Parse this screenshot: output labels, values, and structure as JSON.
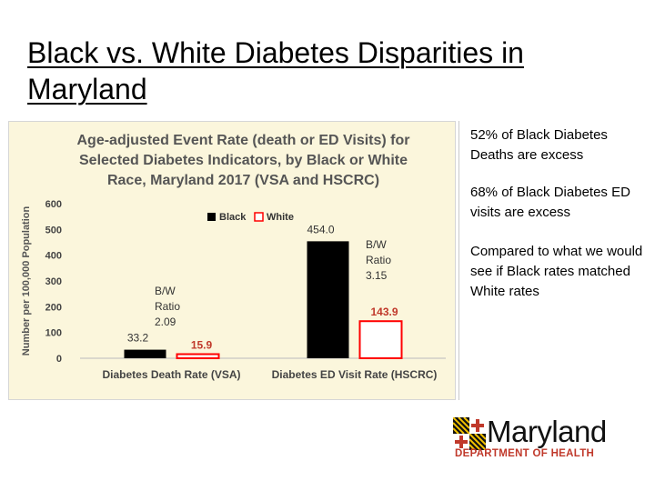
{
  "slide": {
    "title": "Black vs. White Diabetes Disparities in Maryland",
    "notes": [
      "52% of Black Diabetes Deaths are excess",
      "68% of Black Diabetes ED visits are excess",
      "Compared to what we would see if Black rates matched White rates"
    ]
  },
  "logo": {
    "wordmark": "Maryland",
    "department": "DEPARTMENT OF HEALTH"
  },
  "chart_data": {
    "type": "bar",
    "title": "Age-adjusted Event Rate (death or ED Visits) for Selected Diabetes Indicators, by Black or White Race, Maryland 2017 (VSA and HSCRC)",
    "xlabel": "",
    "ylabel": "Number per 100,000 Population",
    "ylim": [
      0,
      600
    ],
    "yticks": [
      0,
      100,
      200,
      300,
      400,
      500,
      600
    ],
    "grid": false,
    "legend_position": "top-center",
    "categories": [
      "Diabetes Death Rate (VSA)",
      "Diabetes ED Visit Rate (HSCRC)"
    ],
    "series": [
      {
        "name": "Black",
        "values": [
          33.2,
          454.0
        ],
        "labels": [
          "33.2",
          "454.0"
        ],
        "color": "#000000"
      },
      {
        "name": "White",
        "values": [
          15.9,
          143.9
        ],
        "labels": [
          "15.9",
          "143.9"
        ],
        "color": "#ff0000"
      }
    ],
    "annotations": [
      {
        "lines": [
          "B/W",
          "Ratio",
          "2.09"
        ],
        "category": "Diabetes Death Rate (VSA)"
      },
      {
        "lines": [
          "B/W",
          "Ratio",
          "3.15"
        ],
        "category": "Diabetes ED Visit Rate (HSCRC)"
      }
    ]
  },
  "colors": {
    "chart_background": "#fbf6dc",
    "chart_title": "#555555",
    "label_black": "#333333",
    "label_white": "#c0392b",
    "logo_red": "#c0392b",
    "logo_gold": "#f2c200"
  }
}
